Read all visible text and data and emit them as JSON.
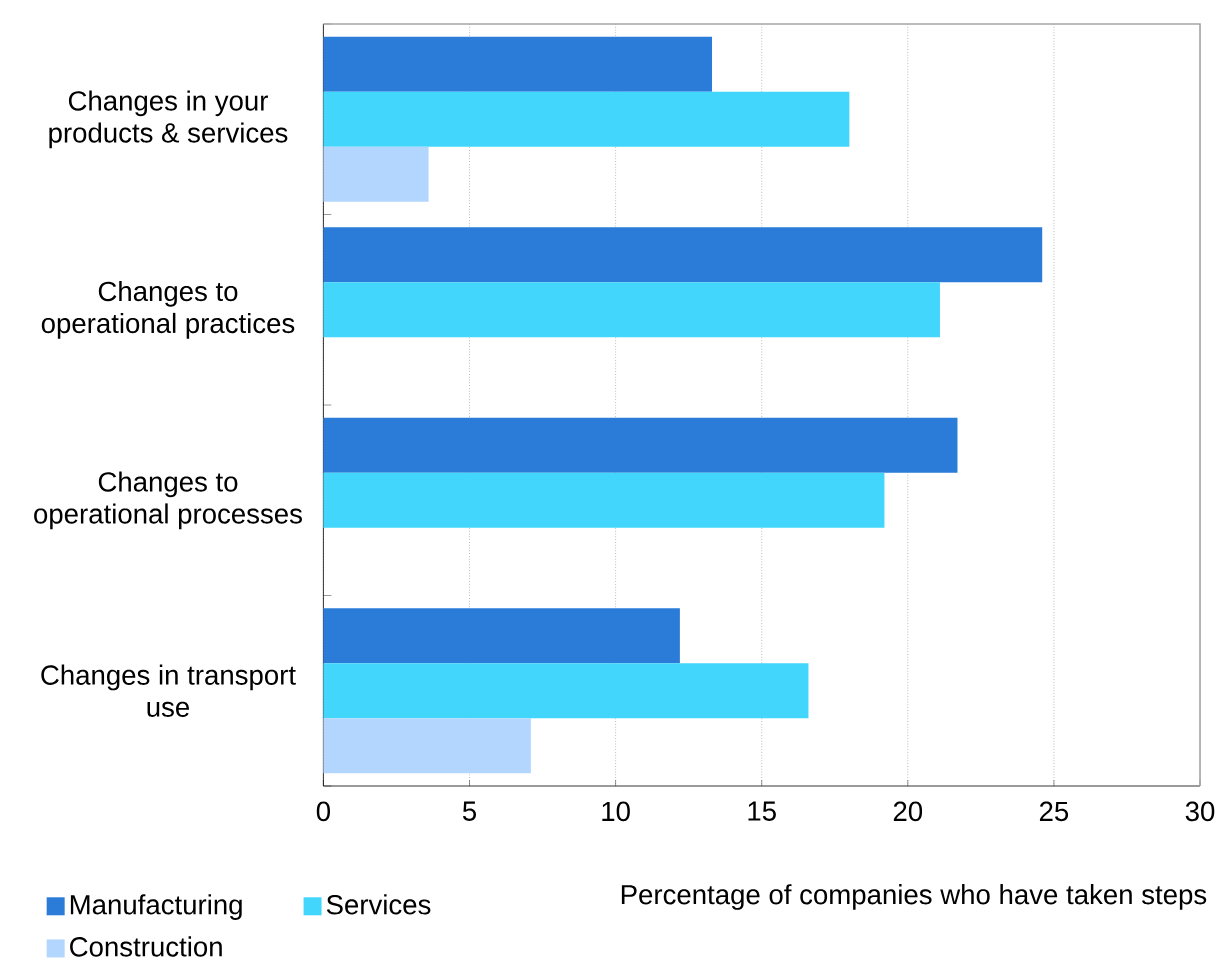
{
  "chart_data": {
    "type": "bar",
    "orientation": "horizontal",
    "categories": [
      "Changes in your products & services",
      "Changes to operational practices",
      "Changes to operational processes",
      "Changes in transport use"
    ],
    "series": [
      {
        "name": "Manufacturing",
        "color": "#2a7cd8",
        "values": [
          13.3,
          24.6,
          21.7,
          12.2
        ]
      },
      {
        "name": "Services",
        "color": "#42d6fc",
        "values": [
          18.0,
          21.1,
          19.2,
          16.6
        ]
      },
      {
        "name": "Construction",
        "color": "#b2d6fe",
        "values": [
          3.6,
          null,
          null,
          7.1
        ]
      }
    ],
    "xlabel": "Percentage of companies who have taken steps",
    "xlim": [
      0,
      30
    ],
    "xticks": [
      0,
      5,
      10,
      15,
      20,
      25,
      30
    ],
    "grid": "x",
    "legend": "bottom left"
  }
}
